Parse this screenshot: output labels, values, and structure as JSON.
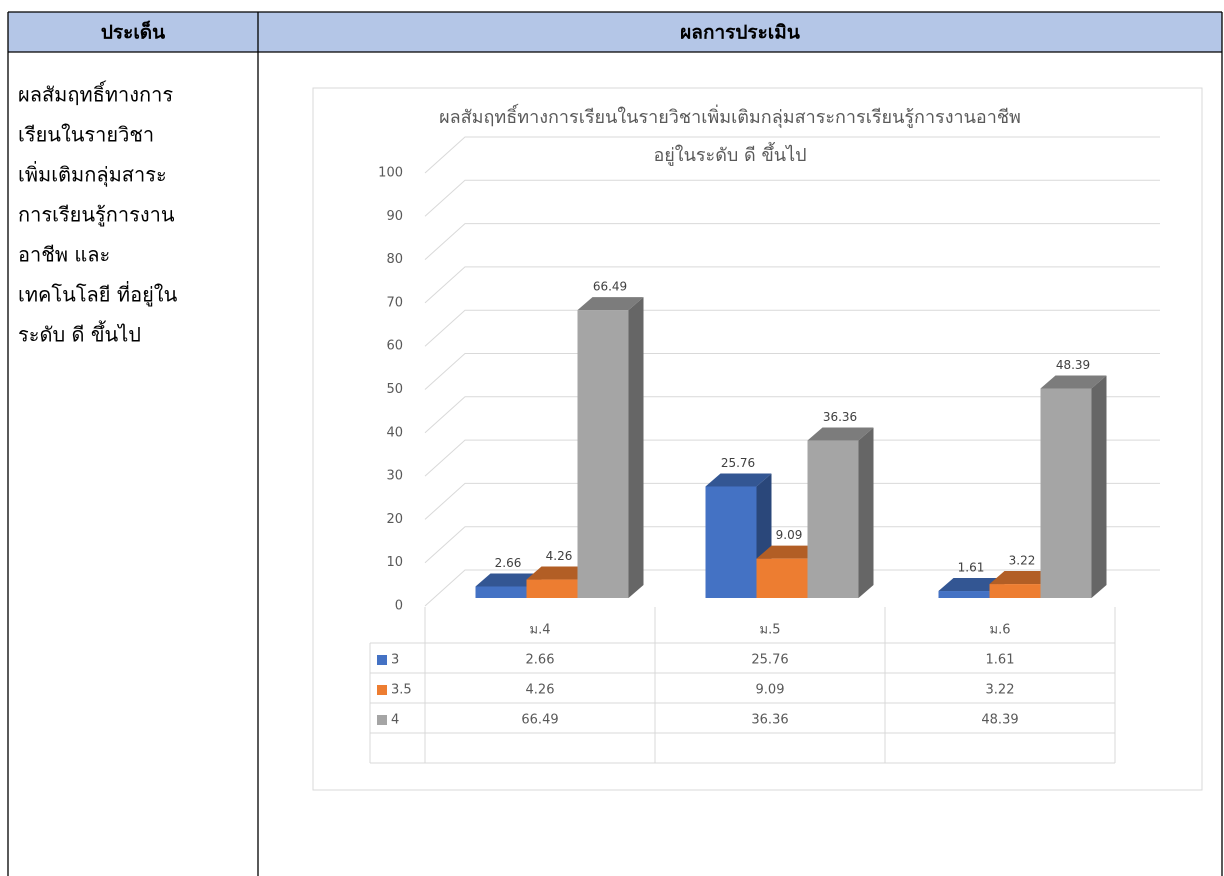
{
  "table": {
    "header": [
      "ประเด็น",
      "ผลการประเมิน"
    ],
    "rows": [
      {
        "topic": [
          "ผลสัมฤทธิ์ทางการ",
          "เรียนในรายวิชา",
          "เพิ่มเติมกลุ่มสาระ",
          "การเรียนรู้การงาน",
          "อาชีพ และ",
          "เทคโนโลยี ที่อยู่ใน",
          "ระดับ ดี ขึ้นไป"
        ]
      }
    ]
  },
  "chart_data": {
    "type": "bar3d",
    "title": [
      "ผลสัมฤทธิ์ทางการเรียนในรายวิชาเพิ่มเติมกลุ่มสาระการเรียนรู้การงานอาชีพ",
      "อยู่ในระดับ ดี ขึ้นไป"
    ],
    "categories": [
      "ม.4",
      "ม.5",
      "ม.6"
    ],
    "series": [
      {
        "name": "3",
        "color": "#4472c4",
        "values": [
          2.66,
          25.76,
          1.61
        ]
      },
      {
        "name": "3.5",
        "color": "#ed7d31",
        "values": [
          4.26,
          9.09,
          3.22
        ]
      },
      {
        "name": "4",
        "color": "#a5a5a5",
        "values": [
          66.49,
          36.36,
          48.39
        ]
      }
    ],
    "ylim": [
      0,
      100
    ],
    "yticks": [
      0,
      10,
      20,
      30,
      40,
      50,
      60,
      70,
      80,
      90,
      100
    ],
    "grid": true,
    "data_table": true
  }
}
